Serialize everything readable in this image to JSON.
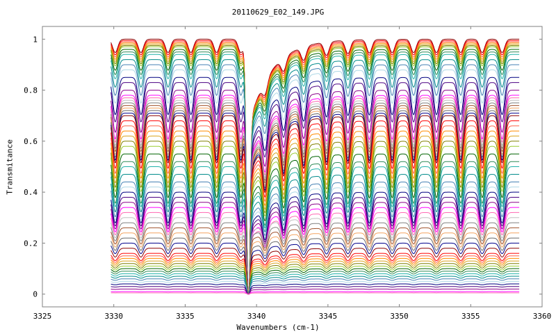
{
  "chart_data": {
    "type": "line",
    "title": "20110629_E02_149.JPG",
    "xlabel": "Wavenumbers (cm-1)",
    "ylabel": "Transmitance",
    "xlim": [
      3325,
      3360
    ],
    "ylim": [
      -0.05,
      1.05
    ],
    "x_ticks": [
      3325,
      3330,
      3335,
      3340,
      3345,
      3350,
      3355,
      3360
    ],
    "x_tick_labels": [
      "3325",
      "3330",
      "3335",
      "3340",
      "3345",
      "3350",
      "3355",
      "3360"
    ],
    "y_ticks": [
      0,
      0.2,
      0.4,
      0.6,
      0.8,
      1
    ],
    "y_tick_labels": [
      "0",
      "0.2",
      "0.4",
      "0.6",
      "0.8",
      "1"
    ],
    "x_range_data": [
      3329.8,
      3358.4
    ],
    "strong_band_center": 3339.4,
    "line_positions": [
      3330.1,
      3331.9,
      3333.8,
      3335.4,
      3337.2,
      3338.9,
      3340.6,
      3341.9,
      3343.3,
      3344.9,
      3346.4,
      3347.9,
      3349.5,
      3351.0,
      3352.6,
      3354.3,
      3355.8,
      3357.2
    ],
    "series_baselines": [
      1.0,
      0.995,
      0.99,
      0.985,
      0.98,
      0.975,
      0.97,
      0.96,
      0.95,
      0.94,
      0.92,
      0.9,
      0.88,
      0.85,
      0.83,
      0.8,
      0.78,
      0.77,
      0.76,
      0.75,
      0.74,
      0.73,
      0.72,
      0.71,
      0.7,
      0.68,
      0.66,
      0.64,
      0.62,
      0.6,
      0.58,
      0.55,
      0.52,
      0.5,
      0.47,
      0.44,
      0.42,
      0.4,
      0.38,
      0.36,
      0.34,
      0.32,
      0.3,
      0.28,
      0.26,
      0.24,
      0.22,
      0.2,
      0.18,
      0.16,
      0.15,
      0.14,
      0.13,
      0.12,
      0.11,
      0.1,
      0.09,
      0.08,
      0.07,
      0.06,
      0.05,
      0.04,
      0.03,
      0.02,
      0.01,
      0.005
    ],
    "palette": [
      "#8b0000",
      "#ff0000",
      "#ff6347",
      "#ff8c00",
      "#daa520",
      "#808000",
      "#9acd32",
      "#006400",
      "#2e8b57",
      "#20b2aa",
      "#008b8b",
      "#4682b4",
      "#add8e6",
      "#000080",
      "#4b0082",
      "#8b008b",
      "#ff00ff",
      "#ff69b4",
      "#c0c0c0",
      "#808080",
      "#a0522d",
      "#f4a460",
      "#696969",
      "#00008b"
    ],
    "grid": false,
    "legend": "none"
  }
}
